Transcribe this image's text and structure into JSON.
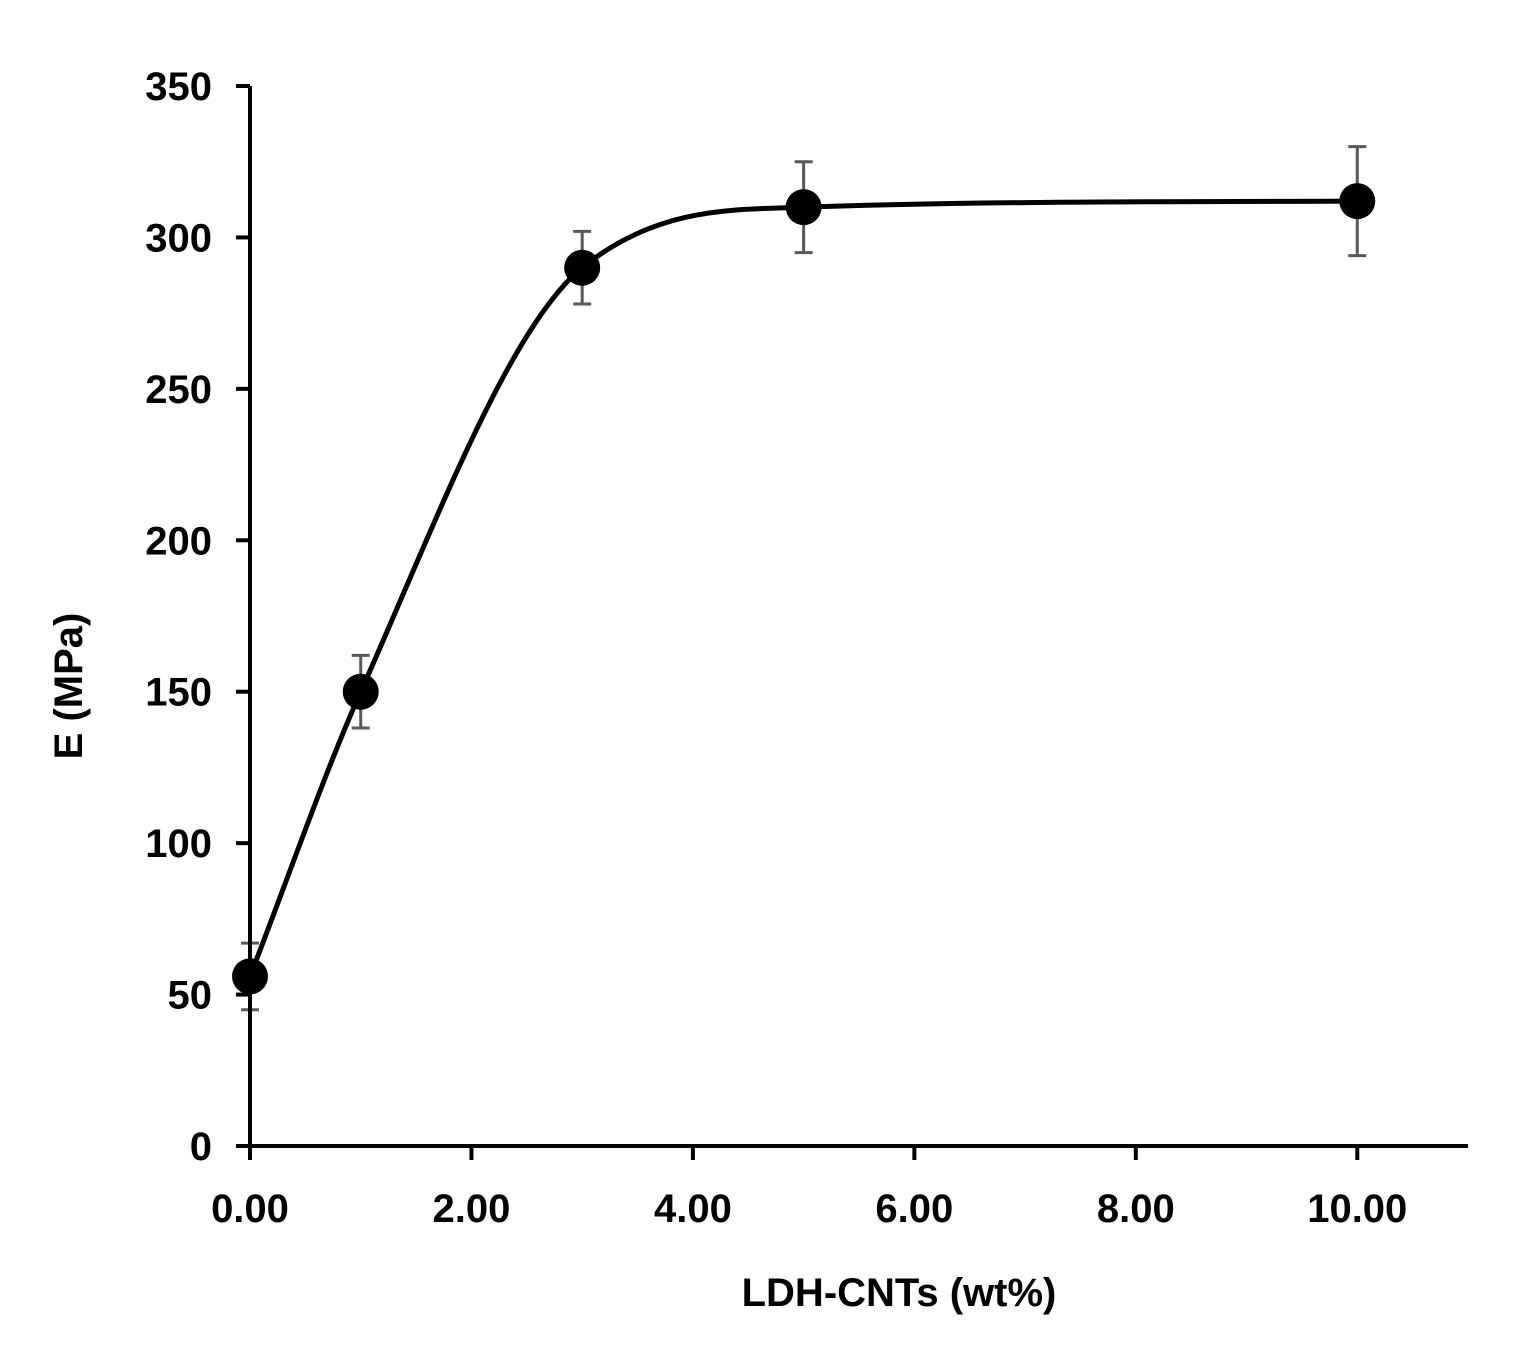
{
  "chart_data": {
    "type": "scatter",
    "xlabel": "LDH-CNTs (wt%)",
    "ylabel": "E (MPa)",
    "xlim": [
      0,
      11
    ],
    "ylim": [
      0,
      350
    ],
    "x_ticks": [
      0,
      2,
      4,
      6,
      8,
      10
    ],
    "x_tick_labels": [
      "0.00",
      "2.00",
      "4.00",
      "6.00",
      "8.00",
      "10.00"
    ],
    "y_ticks": [
      0,
      50,
      100,
      150,
      200,
      250,
      300,
      350
    ],
    "y_tick_labels": [
      "0",
      "50",
      "100",
      "150",
      "200",
      "250",
      "300",
      "350"
    ],
    "grid": false,
    "legend": "none",
    "series": [
      {
        "x": [
          0,
          1,
          3,
          5,
          10
        ],
        "y": [
          56,
          150,
          290,
          310,
          312
        ],
        "error": [
          11,
          12,
          12,
          15,
          18
        ],
        "smooth_line": true
      }
    ],
    "colors": {
      "marker": "#000000",
      "line": "#000000",
      "error_bar": "#595959",
      "axis": "#000000"
    }
  }
}
